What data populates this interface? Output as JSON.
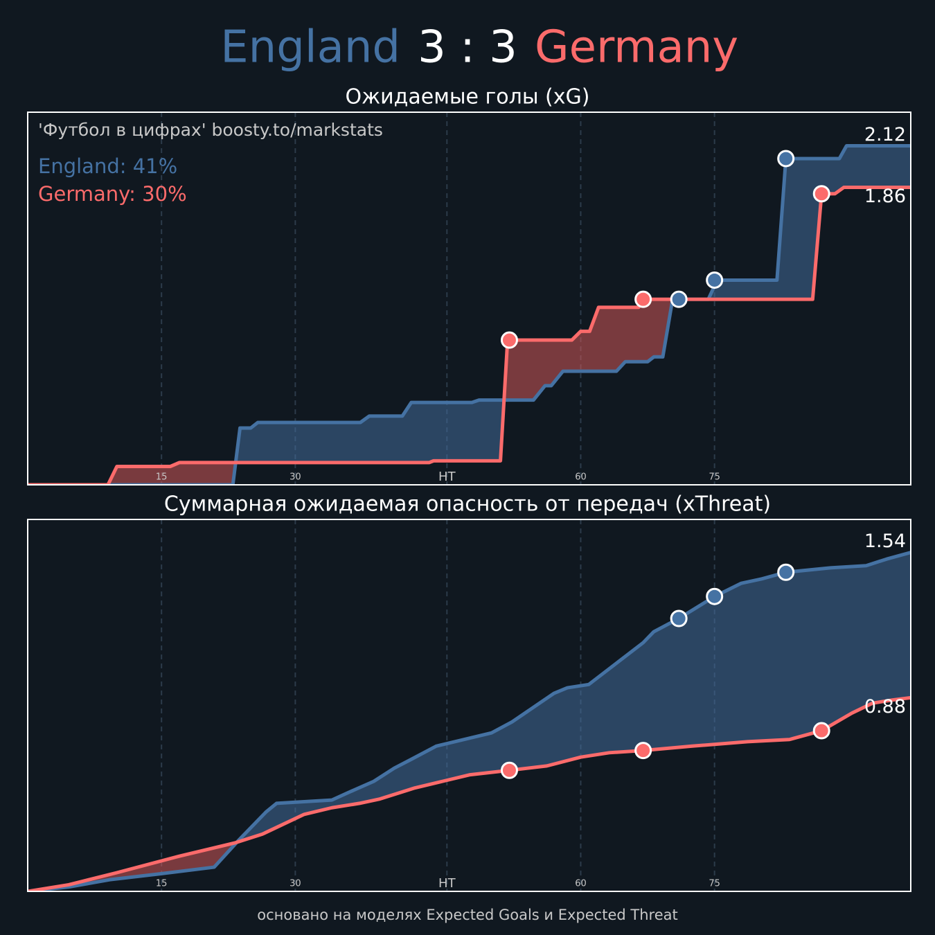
{
  "header": {
    "home": "England",
    "score": "3 : 3",
    "away": "Germany"
  },
  "footer": "основано на моделях Expected Goals и Expected Threat",
  "chart_data": [
    {
      "type": "line",
      "title": "Ожидаемые голы (xG)",
      "annotations": [
        "'Футбол в цифрах' boosty.to/markstats",
        "England: 41%",
        "Germany: 30%"
      ],
      "xlim": [
        0,
        99
      ],
      "ylim": [
        0,
        2.33
      ],
      "xticks": [
        15,
        30,
        {
          "value": 47,
          "label": "HT"
        },
        {
          "value": 62,
          "label": "60"
        },
        {
          "value": 77,
          "label": "75"
        }
      ],
      "grid": true,
      "series": [
        {
          "color": "#4572a3",
          "x": [
            0,
            23,
            23.8,
            25,
            25.8,
            37.3,
            38.3,
            42,
            43,
            49.8,
            50.6,
            56.7,
            58,
            58.7,
            60,
            66,
            67,
            69.5,
            70.2,
            71.2,
            72.3,
            76.3,
            77.3,
            84,
            85,
            91,
            91.8,
            99
          ],
          "values": [
            0,
            0,
            0.355,
            0.355,
            0.39,
            0.39,
            0.43,
            0.43,
            0.515,
            0.515,
            0.53,
            0.53,
            0.62,
            0.62,
            0.71,
            0.71,
            0.77,
            0.77,
            0.8,
            0.8,
            1.16,
            1.16,
            1.28,
            1.28,
            2.04,
            2.04,
            2.12,
            2.12
          ],
          "goals": {
            "x": [
              73,
              77,
              85
            ],
            "values": [
              1.16,
              1.28,
              2.04
            ]
          }
        },
        {
          "color": "#fb6b6b",
          "x": [
            0,
            9,
            10,
            16,
            17,
            45,
            45.5,
            53,
            53.8,
            61,
            62,
            63,
            64,
            68.5,
            69,
            88,
            89,
            90.5,
            91.5,
            99
          ],
          "values": [
            0,
            0,
            0.115,
            0.115,
            0.139,
            0.139,
            0.15,
            0.15,
            0.905,
            0.905,
            0.96,
            0.96,
            1.11,
            1.11,
            1.16,
            1.16,
            1.82,
            1.82,
            1.86,
            1.86
          ],
          "goals": {
            "x": [
              54,
              69,
              89
            ],
            "values": [
              0.905,
              1.16,
              1.82
            ]
          }
        }
      ]
    },
    {
      "type": "line",
      "title": "Суммарная ожидаемая опасность от передач (xThreat)",
      "xlim": [
        0,
        99
      ],
      "ylim": [
        0,
        1.69
      ],
      "xticks": [
        15,
        30,
        {
          "value": 47,
          "label": "HT"
        },
        {
          "value": 62,
          "label": "60"
        },
        {
          "value": 77,
          "label": "75"
        }
      ],
      "grid": true,
      "series": [
        {
          "color": "#4572a3",
          "x": [
            0,
            4.6,
            9.2,
            14.7,
            20.9,
            23.6,
            26.7,
            27.9,
            34.1,
            36,
            38.8,
            41.1,
            43,
            45.8,
            52,
            54.3,
            59,
            60.5,
            62.9,
            69,
            70.2,
            73,
            77,
            80,
            82.3,
            85,
            90,
            94,
            96.3,
            99
          ],
          "values": [
            0,
            0.02,
            0.053,
            0.079,
            0.11,
            0.23,
            0.36,
            0.4,
            0.415,
            0.45,
            0.5,
            0.56,
            0.6,
            0.66,
            0.72,
            0.77,
            0.9,
            0.925,
            0.94,
            1.13,
            1.18,
            1.24,
            1.34,
            1.4,
            1.42,
            1.45,
            1.47,
            1.48,
            1.51,
            1.54
          ],
          "goals": {
            "x": [
              73,
              77,
              85
            ],
            "values": [
              1.24,
              1.34,
              1.45
            ]
          }
        },
        {
          "color": "#fb6b6b",
          "x": [
            0,
            4.6,
            10,
            17,
            23.2,
            26.3,
            31,
            34.1,
            37.2,
            39.5,
            43.4,
            46.5,
            49.6,
            54,
            58.2,
            62,
            65.2,
            69,
            74.5,
            80.7,
            85.4,
            89,
            92.4,
            94.7,
            97,
            99
          ],
          "values": [
            0,
            0.03,
            0.085,
            0.16,
            0.22,
            0.26,
            0.35,
            0.38,
            0.4,
            0.42,
            0.47,
            0.5,
            0.53,
            0.55,
            0.57,
            0.61,
            0.63,
            0.64,
            0.66,
            0.68,
            0.69,
            0.73,
            0.81,
            0.855,
            0.87,
            0.88
          ],
          "goals": {
            "x": [
              54,
              69,
              89
            ],
            "values": [
              0.55,
              0.64,
              0.73
            ]
          }
        }
      ]
    }
  ]
}
